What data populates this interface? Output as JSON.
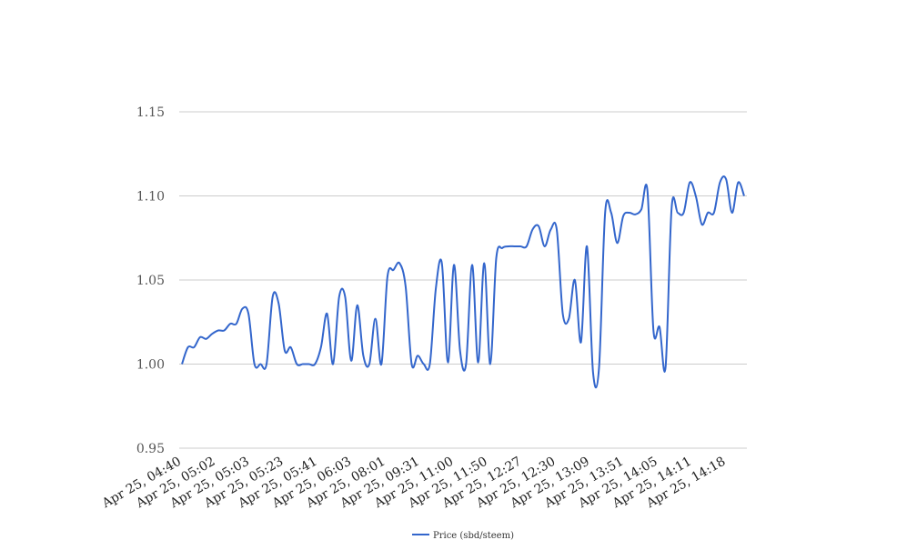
{
  "chart_data": {
    "type": "line",
    "title": "",
    "xlabel": "",
    "ylabel": "",
    "ylim": [
      0.95,
      1.15
    ],
    "yticks": [
      "0.95",
      "1.00",
      "1.05",
      "1.10",
      "1.15"
    ],
    "grid": true,
    "legend_position": "bottom",
    "xtick_labels": [
      "Apr 25, 04:40",
      "Apr 25, 05:02",
      "Apr 25, 05:03",
      "Apr 25, 05:23",
      "Apr 25, 05:41",
      "Apr 25, 06:03",
      "Apr 25, 08:01",
      "Apr 25, 09:31",
      "Apr 25, 11:00",
      "Apr 25, 11:50",
      "Apr 25, 12:27",
      "Apr 25, 12:30",
      "Apr 25, 13:09",
      "Apr 25, 13:51",
      "Apr 25, 14:05",
      "Apr 25, 14:11",
      "Apr 25, 14:18"
    ],
    "series": [
      {
        "name": "Price (sbd/steem)",
        "color": "#3366cc",
        "values": [
          1.0,
          1.01,
          1.01,
          1.016,
          1.015,
          1.018,
          1.02,
          1.02,
          1.024,
          1.024,
          1.033,
          1.03,
          1.0,
          1.0,
          1.0,
          1.04,
          1.036,
          1.008,
          1.01,
          1.0,
          1.0,
          1.0,
          1.0,
          1.01,
          1.03,
          1.0,
          1.04,
          1.04,
          1.002,
          1.035,
          1.005,
          1.0,
          1.027,
          1.0,
          1.052,
          1.056,
          1.06,
          1.046,
          1.0,
          1.005,
          1.0,
          1.0,
          1.045,
          1.06,
          1.001,
          1.059,
          1.008,
          1.0,
          1.059,
          1.001,
          1.06,
          1.0,
          1.063,
          1.069,
          1.07,
          1.07,
          1.07,
          1.07,
          1.08,
          1.082,
          1.07,
          1.08,
          1.08,
          1.03,
          1.027,
          1.05,
          1.013,
          1.07,
          0.995,
          0.998,
          1.09,
          1.09,
          1.072,
          1.088,
          1.09,
          1.089,
          1.092,
          1.103,
          1.02,
          1.022,
          0.998,
          1.093,
          1.09,
          1.09,
          1.108,
          1.1,
          1.083,
          1.09,
          1.09,
          1.108,
          1.11,
          1.09,
          1.108,
          1.1
        ]
      }
    ]
  }
}
